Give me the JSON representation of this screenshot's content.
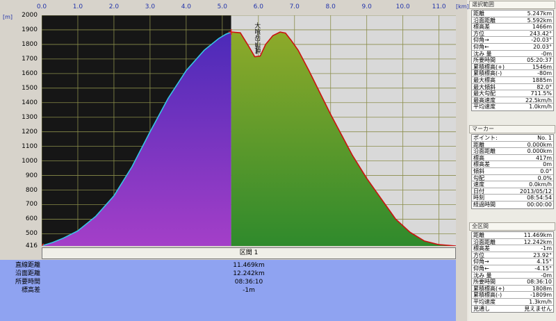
{
  "x_axis": {
    "unit": "[km]",
    "ticks": [
      "0.0",
      "1.0",
      "2.0",
      "3.0",
      "4.0",
      "5.0",
      "6.0",
      "7.0",
      "8.0",
      "9.0",
      "10.0",
      "11.0"
    ]
  },
  "y_axis": {
    "unit": "[m]",
    "ticks": [
      "2000",
      "1900",
      "1800",
      "1700",
      "1600",
      "1500",
      "1400",
      "1300",
      "1200",
      "1100",
      "1000",
      "900",
      "800",
      "700",
      "600",
      "500",
      "416"
    ]
  },
  "peak_label": "大喰岳山頂",
  "chart_data": {
    "type": "area",
    "xlabel": "[km]",
    "ylabel": "[m]",
    "xlim": [
      0,
      11.469
    ],
    "ylim": [
      416,
      2000
    ],
    "grid": true,
    "selection_range_km": [
      0.0,
      5.247
    ],
    "x": [
      0.0,
      0.3,
      0.6,
      1.0,
      1.5,
      2.0,
      2.5,
      3.0,
      3.5,
      4.0,
      4.5,
      4.9,
      5.1,
      5.247,
      5.5,
      5.7,
      5.9,
      6.05,
      6.2,
      6.4,
      6.6,
      6.75,
      6.9,
      7.1,
      7.4,
      7.7,
      8.0,
      8.3,
      8.6,
      9.0,
      9.4,
      9.8,
      10.2,
      10.6,
      11.0,
      11.469
    ],
    "y": [
      417,
      440,
      470,
      520,
      620,
      760,
      960,
      1200,
      1430,
      1620,
      1760,
      1840,
      1870,
      1885,
      1880,
      1800,
      1715,
      1720,
      1800,
      1860,
      1885,
      1878,
      1830,
      1760,
      1620,
      1470,
      1320,
      1180,
      1040,
      880,
      740,
      600,
      510,
      450,
      425,
      416
    ],
    "colors": {
      "selected_fill_bottom": "#a43fc8",
      "selected_fill_top": "#4b2ab8",
      "selected_line": "#36c6e6",
      "rest_fill_top": "#8eaa2a",
      "rest_fill_bottom": "#2f8a2c",
      "rest_line": "#cc1010",
      "selected_background": "#161616",
      "rest_background": "#d9d9d9"
    }
  },
  "segment": {
    "title": "区間 1",
    "rows": [
      {
        "label": "直線距離",
        "value": "11.469km"
      },
      {
        "label": "沿面距離",
        "value": "12.242km"
      },
      {
        "label": "所要時間",
        "value": "08:36:10"
      },
      {
        "label": "標高差",
        "value": "-1m"
      }
    ]
  },
  "panels": [
    {
      "title": "選択範囲",
      "rows": [
        {
          "k": "距離",
          "v": "5.247km"
        },
        {
          "k": "沿面距離",
          "v": "5.592km"
        },
        {
          "k": "標高差",
          "v": "1466m"
        },
        {
          "k": "方位",
          "v": "243.42°"
        },
        {
          "k": "仰角→",
          "v": "-20.03°"
        },
        {
          "k": "仰角←",
          "v": "20.03°"
        },
        {
          "k": "沈み 量",
          "v": "-0m"
        },
        {
          "k": "所要時間",
          "v": "05:20:37"
        },
        {
          "k": "累積標高(+)",
          "v": "1546m"
        },
        {
          "k": "累積標高(-)",
          "v": "-80m"
        },
        {
          "k": "最大標高",
          "v": "1885m"
        },
        {
          "k": "最大傾斜",
          "v": "82.0°"
        },
        {
          "k": "最大勾配",
          "v": "711.5%"
        },
        {
          "k": "最高速度",
          "v": "22.5km/h"
        },
        {
          "k": "平均速度",
          "v": "1.0km/h"
        }
      ]
    },
    {
      "title": "マーカー",
      "rows": [
        {
          "k": "ポイント:",
          "v": "No. 1"
        },
        {
          "k": "距離",
          "v": "0.000km"
        },
        {
          "k": "沿面距離",
          "v": "0.000km"
        },
        {
          "k": "標高",
          "v": "417m"
        },
        {
          "k": "標高差",
          "v": "0m"
        },
        {
          "k": "傾斜",
          "v": "0.0°"
        },
        {
          "k": "勾配",
          "v": "0.0%"
        },
        {
          "k": "速度",
          "v": "0.0km/h"
        },
        {
          "k": "日付",
          "v": "2013/05/12"
        },
        {
          "k": "時刻",
          "v": "08:54:54"
        },
        {
          "k": "経過時間",
          "v": "00:00:00"
        }
      ]
    },
    {
      "title": "全区間",
      "rows": [
        {
          "k": "距離",
          "v": "11.469km"
        },
        {
          "k": "沿面距離",
          "v": "12.242km"
        },
        {
          "k": "標高差",
          "v": "-1m"
        },
        {
          "k": "方位",
          "v": "23.92°"
        },
        {
          "k": "仰角→",
          "v": "4.15°"
        },
        {
          "k": "仰角←",
          "v": "-4.15°"
        },
        {
          "k": "沈み 量",
          "v": "-0m"
        },
        {
          "k": "所要時間",
          "v": "08:36:10"
        },
        {
          "k": "累積標高(+)",
          "v": "1808m"
        },
        {
          "k": "累積標高(-)",
          "v": "-1809m"
        },
        {
          "k": "平均速度",
          "v": "1.3km/h"
        },
        {
          "k": "見通し",
          "v": "見えません"
        }
      ]
    }
  ]
}
